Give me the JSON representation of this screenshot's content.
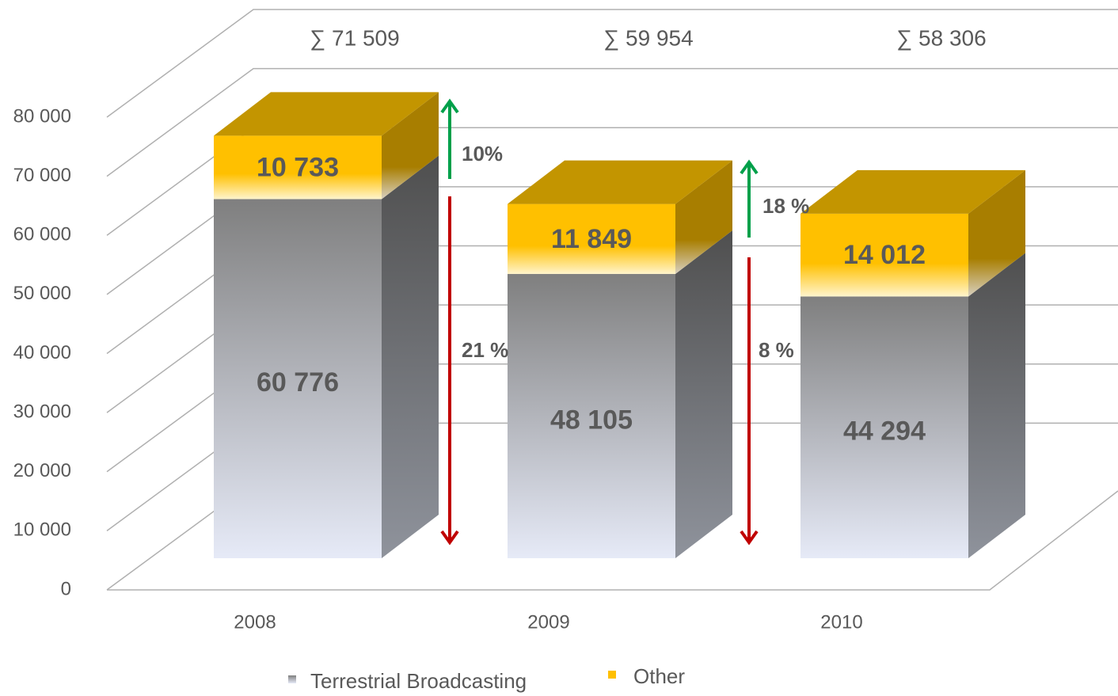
{
  "chart_data": {
    "type": "bar3d_stacked",
    "categories": [
      "2008",
      "2009",
      "2010"
    ],
    "series": [
      {
        "name": "Terrestrial Broadcasting",
        "color": "#7f7f7f",
        "values": [
          60776,
          48105,
          44294
        ],
        "value_labels": [
          "60 776",
          "48 105",
          "44 294"
        ]
      },
      {
        "name": "Other",
        "color": "#ffc000",
        "values": [
          10733,
          11849,
          14012
        ],
        "value_labels": [
          "10 733",
          "11 849",
          "14 012"
        ]
      }
    ],
    "total_labels": [
      "∑ 71 509",
      "∑ 59 954",
      "∑ 58 306"
    ],
    "annotations": [
      {
        "label": "10%",
        "direction": "up",
        "color": "#00a04a"
      },
      {
        "label": "21 %",
        "direction": "down",
        "color": "#c00000"
      },
      {
        "label": "18 %",
        "direction": "up",
        "color": "#00a04a"
      },
      {
        "label": "8 %",
        "direction": "down",
        "color": "#c00000"
      }
    ],
    "ylim": [
      0,
      80000
    ],
    "yticks": [
      0,
      {
        "value": 10000,
        "label": "10 000"
      },
      {
        "value": 20000,
        "label": "20 000"
      },
      {
        "value": 30000,
        "label": "30 000"
      },
      {
        "value": 40000,
        "label": "40 000"
      },
      {
        "value": 50000,
        "label": "50 000"
      },
      {
        "value": 60000,
        "label": "60 000"
      },
      {
        "value": 70000,
        "label": "70 000"
      },
      {
        "value": 80000,
        "label": "80 000"
      }
    ],
    "grid": true
  }
}
